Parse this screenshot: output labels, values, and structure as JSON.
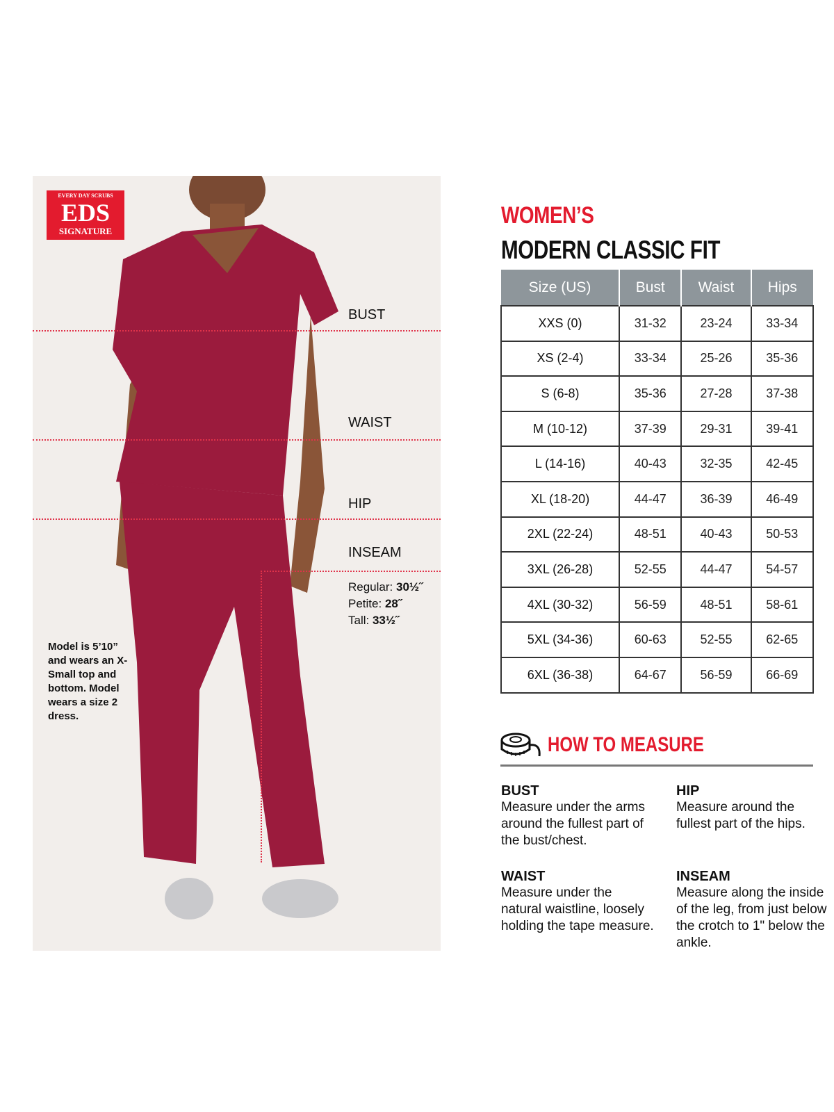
{
  "logo": {
    "line1": "EVERY DAY SCRUBS",
    "line2": "EDS",
    "line3": "SIGNATURE"
  },
  "photo_labels": {
    "bust": "BUST",
    "waist": "WAIST",
    "hip": "HIP",
    "inseam": "INSEAM"
  },
  "inseam": [
    {
      "label": "Regular:",
      "value": "30½˝"
    },
    {
      "label": "Petite:",
      "value": "28˝"
    },
    {
      "label": "Tall:",
      "value": "33½˝"
    }
  ],
  "model_note": "Model is 5’10” and wears an X-Small top and bottom. Model wears a size 2 dress.",
  "title": {
    "line1": "WOMEN’S",
    "line2": "MODERN CLASSIC FIT"
  },
  "table": {
    "headers": [
      "Size (US)",
      "Bust",
      "Waist",
      "Hips"
    ],
    "rows": [
      [
        "XXS (0)",
        "31-32",
        "23-24",
        "33-34"
      ],
      [
        "XS (2-4)",
        "33-34",
        "25-26",
        "35-36"
      ],
      [
        "S (6-8)",
        "35-36",
        "27-28",
        "37-38"
      ],
      [
        "M (10-12)",
        "37-39",
        "29-31",
        "39-41"
      ],
      [
        "L (14-16)",
        "40-43",
        "32-35",
        "42-45"
      ],
      [
        "XL (18-20)",
        "44-47",
        "36-39",
        "46-49"
      ],
      [
        "2XL (22-24)",
        "48-51",
        "40-43",
        "50-53"
      ],
      [
        "3XL (26-28)",
        "52-55",
        "44-47",
        "54-57"
      ],
      [
        "4XL (30-32)",
        "56-59",
        "48-51",
        "58-61"
      ],
      [
        "5XL (34-36)",
        "60-63",
        "52-55",
        "62-65"
      ],
      [
        "6XL (36-38)",
        "64-67",
        "56-59",
        "66-69"
      ]
    ]
  },
  "how_to_measure": {
    "title": "HOW TO MEASURE",
    "icon": "measuring-tape-icon",
    "items": [
      {
        "name": "BUST",
        "text": "Measure under the arms around the fullest part of the bust/chest."
      },
      {
        "name": "HIP",
        "text": "Measure around the fullest part of the hips."
      },
      {
        "name": "WAIST",
        "text": "Measure under the natural waistline, loosely holding the tape measure."
      },
      {
        "name": "INSEAM",
        "text": "Measure along the inside of the leg, from just below the crotch to 1\" below the ankle."
      }
    ]
  },
  "colors": {
    "accent": "#e31b2e",
    "scrub": "#9b1b3d",
    "header": "#8e969b"
  }
}
